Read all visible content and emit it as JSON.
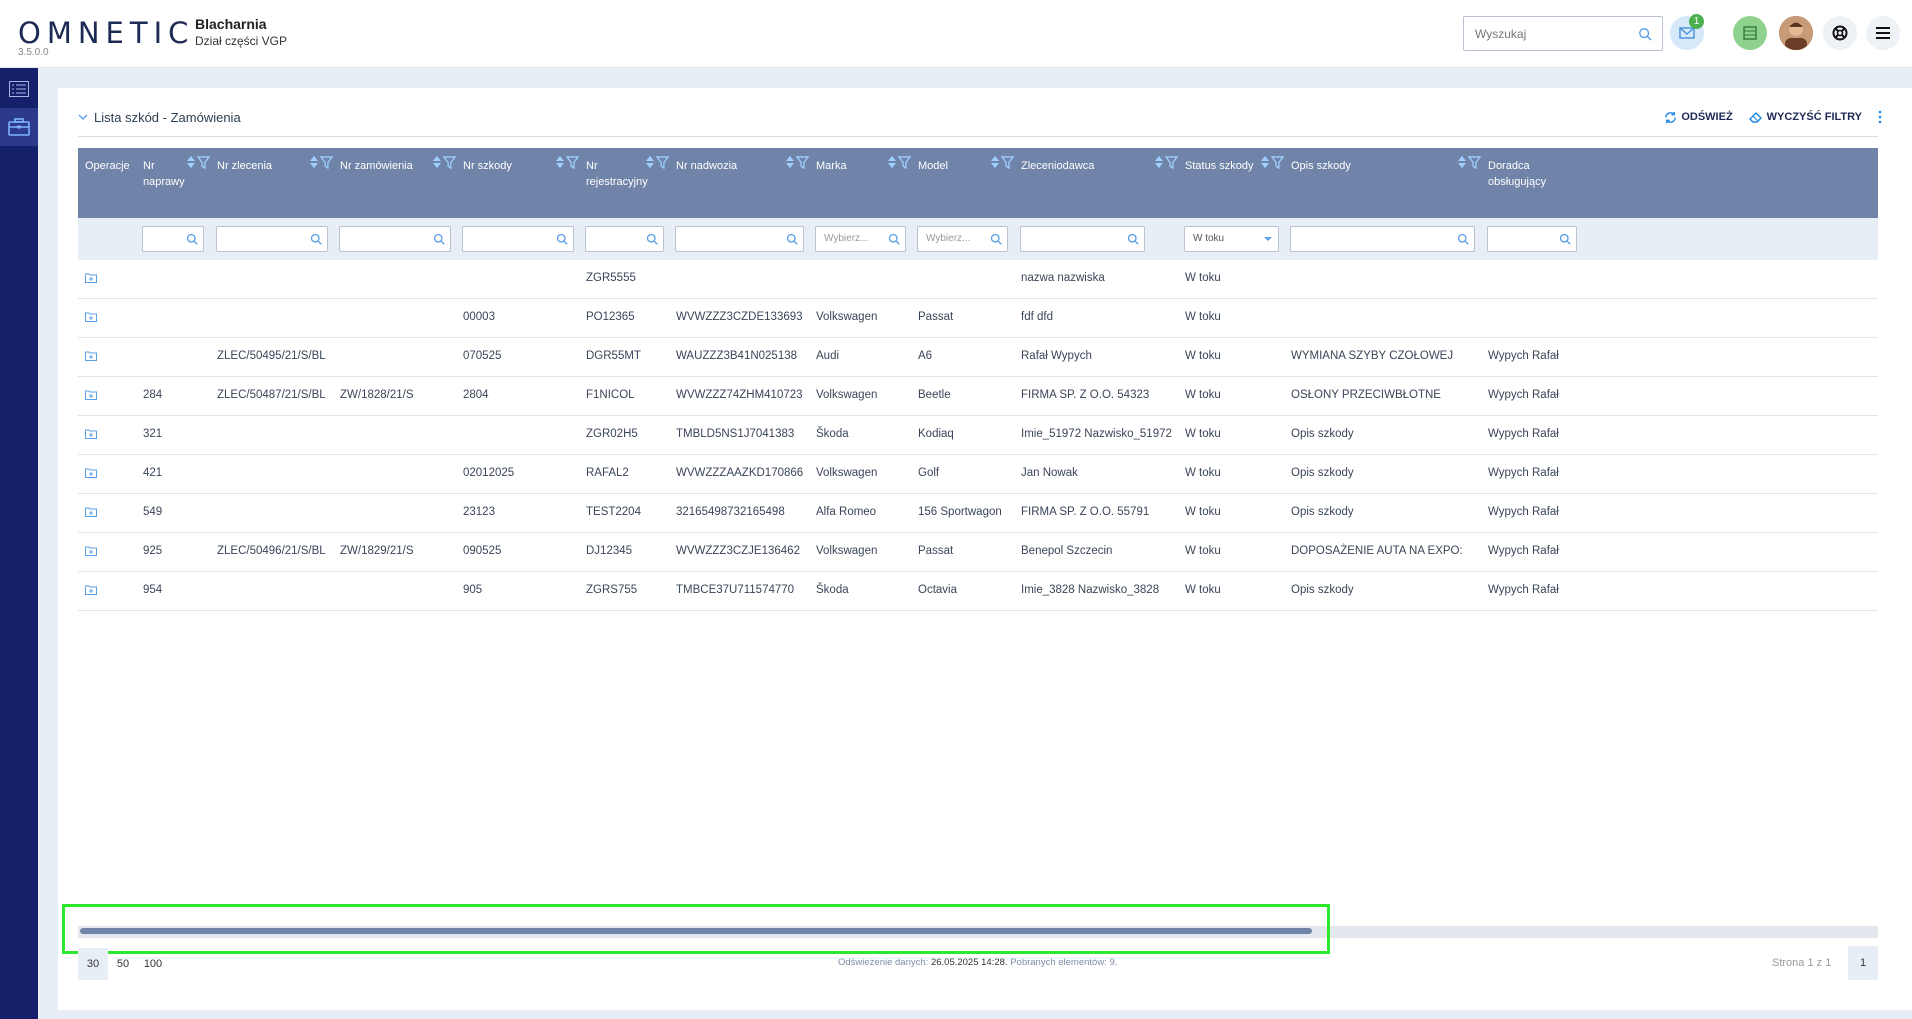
{
  "header": {
    "logo": "OMNETIC",
    "version": "3.5.0.0",
    "company": "Blacharnia",
    "department": "Dział części VGP",
    "search_placeholder": "Wyszukaj",
    "mail_badge": "1"
  },
  "card": {
    "title": "Lista szkód - Zamówienia",
    "refresh_label": "ODŚWIEŻ",
    "clear_filters_label": "WYCZYŚĆ FILTRY"
  },
  "columns": [
    "Operacje",
    "Nr naprawy",
    "Nr zlecenia",
    "Nr zamówienia",
    "Nr szkody",
    "Nr rejestracyjny",
    "Nr nadwozia",
    "Marka",
    "Model",
    "Zleceniodawca",
    "Status szkody",
    "Opis szkody",
    "Doradca obsługujący"
  ],
  "filters": {
    "marka_placeholder": "Wybierz...",
    "model_placeholder": "Wybierz...",
    "status_selected": "W toku"
  },
  "rows": [
    [
      "",
      "",
      "",
      "",
      "ZGR5555",
      "",
      "",
      "",
      "nazwa nazwiska",
      "W toku",
      "",
      ""
    ],
    [
      "",
      "",
      "",
      "00003",
      "PO12365",
      "WVWZZZ3CZDE133693",
      "Volkswagen",
      "Passat",
      "fdf dfd",
      "W toku",
      "",
      ""
    ],
    [
      "",
      "ZLEC/50495/21/S/BL",
      "",
      "070525",
      "DGR55MT",
      "WAUZZZ3B41N025138",
      "Audi",
      "A6",
      "Rafał Wypych",
      "W toku",
      "WYMIANA SZYBY CZOŁOWEJ",
      "Wypych Rafał"
    ],
    [
      "284",
      "ZLEC/50487/21/S/BL",
      "ZW/1828/21/S",
      "2804",
      "F1NICOL",
      "WVWZZZ74ZHM410723",
      "Volkswagen",
      "Beetle",
      "FIRMA SP. Z O.O. 54323",
      "W toku",
      "OSŁONY PRZECIWBŁOTNE",
      "Wypych Rafał"
    ],
    [
      "321",
      "",
      "",
      "",
      "ZGR02H5",
      "TMBLD5NS1J7041383",
      "Škoda",
      "Kodiaq",
      "Imie_51972 Nazwisko_51972",
      "W toku",
      "Opis szkody",
      "Wypych Rafał"
    ],
    [
      "421",
      "",
      "",
      "02012025",
      "RAFAL2",
      "WVWZZZAAZKD170866",
      "Volkswagen",
      "Golf",
      "Jan Nowak",
      "W toku",
      "Opis szkody",
      "Wypych Rafał"
    ],
    [
      "549",
      "",
      "",
      "23123",
      "TEST2204",
      "32165498732165498",
      "Alfa Romeo",
      "156 Sportwagon",
      "FIRMA SP. Z O.O. 55791",
      "W toku",
      "Opis szkody",
      "Wypych Rafał"
    ],
    [
      "925",
      "ZLEC/50496/21/S/BL",
      "ZW/1829/21/S",
      "090525",
      "DJ12345",
      "WVWZZZ3CZJE136462",
      "Volkswagen",
      "Passat",
      "Benepol Szczecin",
      "W toku",
      "DOPOSAŻENIE AUTA NA EXPO:",
      "Wypych Rafał"
    ],
    [
      "954",
      "",
      "",
      "905",
      "ZGRS755",
      "TMBCE37U711574770",
      "Škoda",
      "Octavia",
      "Imie_3828 Nazwisko_3828",
      "W toku",
      "Opis szkody",
      "Wypych Rafał"
    ]
  ],
  "footer": {
    "page_sizes": [
      "30",
      "50",
      "100"
    ],
    "status_prefix": "Odświeżenie danych:",
    "status_date": "26.05.2025 14:28.",
    "status_count_label": "Pobranych elementów:",
    "status_count": "9.",
    "page_label": "Strona 1 z 1",
    "page_number": "1"
  },
  "colors": {
    "sidebar": "#15206b",
    "table_header": "#6f84a8",
    "accent": "#1e88e5",
    "highlight": "#2ee82e"
  }
}
